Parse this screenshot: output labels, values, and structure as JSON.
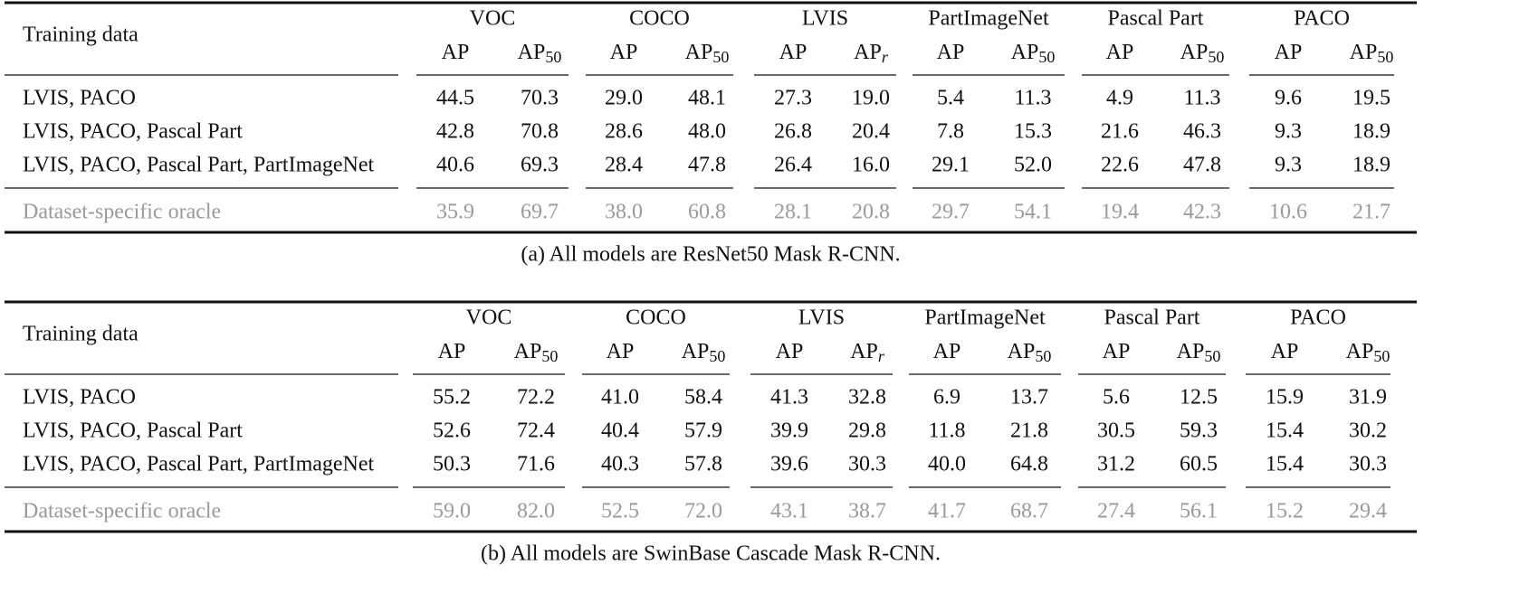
{
  "tables": [
    {
      "row_header": "Training data",
      "groups": [
        "VOC",
        "COCO",
        "LVIS",
        "PartImageNet",
        "Pascal Part",
        "PACO"
      ],
      "columns": [
        {
          "text": "AP"
        },
        {
          "text": "AP",
          "sub": "50"
        },
        {
          "text": "AP"
        },
        {
          "text": "AP",
          "sub": "50"
        },
        {
          "text": "AP"
        },
        {
          "text": "AP",
          "sub": "r"
        },
        {
          "text": "AP"
        },
        {
          "text": "AP",
          "sub": "50"
        },
        {
          "text": "AP"
        },
        {
          "text": "AP",
          "sub": "50"
        },
        {
          "text": "AP"
        },
        {
          "text": "AP",
          "sub": "50"
        }
      ],
      "rows": [
        {
          "label": "LVIS, PACO",
          "values": [
            "44.5",
            "70.3",
            "29.0",
            "48.1",
            "27.3",
            "19.0",
            "5.4",
            "11.3",
            "4.9",
            "11.3",
            "9.6",
            "19.5"
          ]
        },
        {
          "label": "LVIS, PACO, Pascal Part",
          "values": [
            "42.8",
            "70.8",
            "28.6",
            "48.0",
            "26.8",
            "20.4",
            "7.8",
            "15.3",
            "21.6",
            "46.3",
            "9.3",
            "18.9"
          ]
        },
        {
          "label": "LVIS, PACO, Pascal Part, PartImageNet",
          "values": [
            "40.6",
            "69.3",
            "28.4",
            "47.8",
            "26.4",
            "16.0",
            "29.1",
            "52.0",
            "22.6",
            "47.8",
            "9.3",
            "18.9"
          ]
        }
      ],
      "oracle": {
        "label": "Dataset-specific oracle",
        "values": [
          "35.9",
          "69.7",
          "38.0",
          "60.8",
          "28.1",
          "20.8",
          "29.7",
          "54.1",
          "19.4",
          "42.3",
          "10.6",
          "21.7"
        ]
      },
      "caption": "(a) All models are ResNet50 Mask R-CNN."
    },
    {
      "row_header": "Training data",
      "groups": [
        "VOC",
        "COCO",
        "LVIS",
        "PartImageNet",
        "Pascal Part",
        "PACO"
      ],
      "columns": [
        {
          "text": "AP"
        },
        {
          "text": "AP",
          "sub": "50"
        },
        {
          "text": "AP"
        },
        {
          "text": "AP",
          "sub": "50"
        },
        {
          "text": "AP"
        },
        {
          "text": "AP",
          "sub": "r"
        },
        {
          "text": "AP"
        },
        {
          "text": "AP",
          "sub": "50"
        },
        {
          "text": "AP"
        },
        {
          "text": "AP",
          "sub": "50"
        },
        {
          "text": "AP"
        },
        {
          "text": "AP",
          "sub": "50"
        }
      ],
      "rows": [
        {
          "label": "LVIS, PACO",
          "values": [
            "55.2",
            "72.2",
            "41.0",
            "58.4",
            "41.3",
            "32.8",
            "6.9",
            "13.7",
            "5.6",
            "12.5",
            "15.9",
            "31.9"
          ]
        },
        {
          "label": "LVIS, PACO, Pascal Part",
          "values": [
            "52.6",
            "72.4",
            "40.4",
            "57.9",
            "39.9",
            "29.8",
            "11.8",
            "21.8",
            "30.5",
            "59.3",
            "15.4",
            "30.2"
          ]
        },
        {
          "label": "LVIS, PACO, Pascal Part, PartImageNet",
          "values": [
            "50.3",
            "71.6",
            "40.3",
            "57.8",
            "39.6",
            "30.3",
            "40.0",
            "64.8",
            "31.2",
            "60.5",
            "15.4",
            "30.3"
          ]
        }
      ],
      "oracle": {
        "label": "Dataset-specific oracle",
        "values": [
          "59.0",
          "82.0",
          "52.5",
          "72.0",
          "43.1",
          "38.7",
          "41.7",
          "68.7",
          "27.4",
          "56.1",
          "15.2",
          "29.4"
        ]
      },
      "caption": "(b) All models are SwinBase Cascade Mask R-CNN."
    }
  ]
}
